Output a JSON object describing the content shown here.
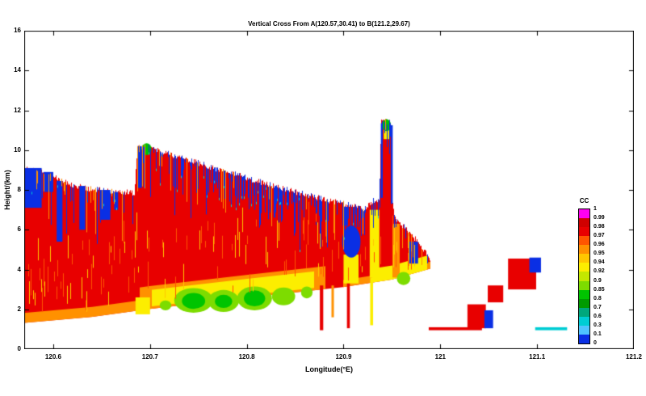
{
  "chart_data": {
    "type": "heatmap",
    "title": "Vertical Cross From A(120.57,30.41) to B(121.2,29.67)",
    "xlabel": "Longitude(°E)",
    "ylabel": "Height/(km)",
    "xlim": [
      120.57,
      121.2
    ],
    "ylim": [
      0,
      16
    ],
    "xticks": [
      120.6,
      120.7,
      120.8,
      120.9,
      121,
      121.1,
      121.2
    ],
    "xtick_labels": [
      "120.6",
      "120.7",
      "120.8",
      "120.9",
      "121",
      "121.1",
      "121.2"
    ],
    "yticks": [
      0,
      2,
      4,
      6,
      8,
      10,
      12,
      14,
      16
    ],
    "ytick_labels": [
      "0",
      "2",
      "4",
      "6",
      "8",
      "10",
      "12",
      "14",
      "16"
    ],
    "grid": false,
    "legend_position": "right-inside",
    "colorbar": {
      "title": "CC",
      "levels": [
        1,
        0.99,
        0.98,
        0.97,
        0.96,
        0.95,
        0.94,
        0.92,
        0.9,
        0.85,
        0.8,
        0.7,
        0.6,
        0.3,
        0.1,
        0
      ],
      "labels": [
        "1",
        "0.99",
        "0.98",
        "0.97",
        "0.96",
        "0.95",
        "0.94",
        "0.92",
        "0.9",
        "0.85",
        "0.8",
        "0.7",
        "0.6",
        "0.3",
        "0.1",
        "0"
      ],
      "colors": [
        "#ff00f0",
        "#d00000",
        "#e80000",
        "#ff5500",
        "#ff9100",
        "#ffc800",
        "#fcee00",
        "#c3e800",
        "#7ddc00",
        "#00c400",
        "#009b00",
        "#00a87c",
        "#00cdd4",
        "#4fc4ff",
        "#0a2fe4"
      ]
    },
    "cross_section": {
      "description": "Radar correlation-coefficient vertical cross section; main echo wedge from A toward B, mostly CC 0.97-0.98 (red), low-CC (blue) spikes along echo top, CC 0.8-0.9 (green) pockets near 2-3 km between 120.72-120.85, isolated cells east of 121.0",
      "base_cc": 0.975,
      "x_end": 120.99,
      "top_profile": [
        [
          120.57,
          9.05
        ],
        [
          120.595,
          8.85
        ],
        [
          120.615,
          8.35
        ],
        [
          120.635,
          8.05
        ],
        [
          120.66,
          7.95
        ],
        [
          120.684,
          7.85
        ],
        [
          120.687,
          10.15
        ],
        [
          120.7,
          10.25
        ],
        [
          120.704,
          10.05
        ],
        [
          120.75,
          9.35
        ],
        [
          120.8,
          8.6
        ],
        [
          120.85,
          7.9
        ],
        [
          120.9,
          7.3
        ],
        [
          120.923,
          7.05
        ],
        [
          120.93,
          7.45
        ],
        [
          120.937,
          7.5
        ],
        [
          120.939,
          11.45
        ],
        [
          120.949,
          11.4
        ],
        [
          120.951,
          7.2
        ],
        [
          120.954,
          6.55
        ],
        [
          120.96,
          6.25
        ],
        [
          120.975,
          5.5
        ],
        [
          120.985,
          4.9
        ],
        [
          120.99,
          4.4
        ]
      ],
      "bottom_profile": [
        [
          120.57,
          1.32
        ],
        [
          120.64,
          1.62
        ],
        [
          120.7,
          2.02
        ],
        [
          120.8,
          2.58
        ],
        [
          120.9,
          3.12
        ],
        [
          120.95,
          3.5
        ],
        [
          120.99,
          4.05
        ]
      ],
      "features": [
        {
          "kind": "band",
          "x0": 120.57,
          "x1": 120.69,
          "dz0": 0.0,
          "dz1": 0.5,
          "cc": 0.96
        },
        {
          "kind": "band",
          "x0": 120.69,
          "x1": 120.88,
          "dz0": 0.0,
          "dz1": 1.15,
          "cc": 0.955
        },
        {
          "kind": "band",
          "x0": 120.702,
          "x1": 120.868,
          "dz0": 0.12,
          "dz1": 0.95,
          "cc": 0.93
        },
        {
          "kind": "band",
          "x0": 120.9,
          "x1": 120.99,
          "dz0": 0.0,
          "dz1": 0.35,
          "cc": 0.955
        },
        {
          "kind": "band",
          "x0": 120.93,
          "x1": 120.985,
          "dz0": 0.0,
          "dz1": 0.7,
          "cc": 0.93
        },
        {
          "kind": "rect",
          "x0": 120.685,
          "x1": 120.7,
          "z0": 1.75,
          "z1": 2.6,
          "cc": 0.94
        },
        {
          "kind": "ellipse",
          "cx": 120.745,
          "cz": 2.45,
          "rx": 0.02,
          "rz": 0.62,
          "cc": 0.87
        },
        {
          "kind": "ellipse",
          "cx": 120.776,
          "cz": 2.42,
          "rx": 0.016,
          "rz": 0.55,
          "cc": 0.87
        },
        {
          "kind": "ellipse",
          "cx": 120.808,
          "cz": 2.55,
          "rx": 0.018,
          "rz": 0.6,
          "cc": 0.87
        },
        {
          "kind": "ellipse",
          "cx": 120.838,
          "cz": 2.65,
          "rx": 0.012,
          "rz": 0.45,
          "cc": 0.87
        },
        {
          "kind": "ellipse",
          "cx": 120.745,
          "cz": 2.42,
          "rx": 0.012,
          "rz": 0.4,
          "cc": 0.82
        },
        {
          "kind": "ellipse",
          "cx": 120.776,
          "cz": 2.4,
          "rx": 0.009,
          "rz": 0.33,
          "cc": 0.82
        },
        {
          "kind": "ellipse",
          "cx": 120.808,
          "cz": 2.55,
          "rx": 0.011,
          "rz": 0.4,
          "cc": 0.82
        },
        {
          "kind": "ellipse",
          "cx": 120.716,
          "cz": 2.2,
          "rx": 0.006,
          "rz": 0.25,
          "cc": 0.87
        },
        {
          "kind": "ellipse",
          "cx": 120.862,
          "cz": 2.85,
          "rx": 0.006,
          "rz": 0.3,
          "cc": 0.87
        },
        {
          "kind": "rect",
          "x0": 120.57,
          "x1": 120.588,
          "z0": 7.1,
          "z1": 9.1,
          "cc": 0.05
        },
        {
          "kind": "rect",
          "x0": 120.59,
          "x1": 120.6,
          "z0": 7.9,
          "z1": 8.9,
          "cc": 0.05
        },
        {
          "kind": "rect",
          "x0": 120.6035,
          "x1": 120.6095,
          "z0": 5.4,
          "z1": 8.45,
          "cc": 0.05
        },
        {
          "kind": "rect",
          "x0": 120.627,
          "x1": 120.633,
          "z0": 6.0,
          "z1": 8.2,
          "cc": 0.05
        },
        {
          "kind": "rect",
          "x0": 120.648,
          "x1": 120.659,
          "z0": 6.5,
          "z1": 8.0,
          "cc": 0.05
        },
        {
          "kind": "rect",
          "x0": 120.663,
          "x1": 120.667,
          "z0": 7.0,
          "z1": 7.9,
          "cc": 0.05
        },
        {
          "kind": "rect",
          "x0": 120.6875,
          "x1": 120.6915,
          "z0": 8.1,
          "z1": 10.2,
          "cc": 0.05
        },
        {
          "kind": "ellipse",
          "cx": 120.6965,
          "cz": 10.05,
          "rx": 0.005,
          "rz": 0.3,
          "cc": 0.85
        },
        {
          "kind": "rect",
          "x0": 120.9,
          "x1": 120.9155,
          "z0": 3.3,
          "z1": 4.75,
          "cc": 0.93
        },
        {
          "kind": "ellipse",
          "cx": 120.908,
          "cz": 5.4,
          "rx": 0.0095,
          "rz": 0.8,
          "cc": 0.05
        },
        {
          "kind": "rect",
          "x0": 120.899,
          "x1": 120.9045,
          "z0": 6.2,
          "z1": 7.15,
          "cc": 0.05
        },
        {
          "kind": "rect",
          "x0": 120.927,
          "x1": 120.937,
          "z0": 3.6,
          "z1": 7.0,
          "cc": 0.94
        },
        {
          "kind": "rect",
          "x0": 120.9505,
          "x1": 120.958,
          "z0": 3.6,
          "z1": 6.3,
          "cc": 0.955
        },
        {
          "kind": "rect",
          "x0": 120.9385,
          "x1": 120.9405,
          "z0": 7.6,
          "z1": 11.35,
          "cc": 0.05
        },
        {
          "kind": "rect",
          "x0": 120.9488,
          "x1": 120.9508,
          "z0": 7.3,
          "z1": 11.25,
          "cc": 0.05
        },
        {
          "kind": "rect",
          "x0": 120.9415,
          "x1": 120.9478,
          "z0": 10.55,
          "z1": 11.05,
          "cc": 0.93
        },
        {
          "kind": "ellipse",
          "cx": 120.9445,
          "cz": 11.25,
          "rx": 0.0045,
          "rz": 0.3,
          "cc": 0.85
        },
        {
          "kind": "ellipse",
          "cx": 120.962,
          "cz": 3.55,
          "rx": 0.007,
          "rz": 0.33,
          "cc": 0.87
        },
        {
          "kind": "rect",
          "x0": 120.9675,
          "x1": 120.977,
          "z0": 4.3,
          "z1": 5.4,
          "cc": 0.05
        },
        {
          "kind": "rect",
          "x0": 120.8755,
          "x1": 120.879,
          "z0": 0.95,
          "z1": 3.2,
          "cc": 0.975
        },
        {
          "kind": "rect",
          "x0": 120.8875,
          "x1": 120.89,
          "z0": 1.6,
          "z1": 3.2,
          "cc": 0.955
        },
        {
          "kind": "rect",
          "x0": 120.9035,
          "x1": 120.9065,
          "z0": 1.05,
          "z1": 3.3,
          "cc": 0.975
        },
        {
          "kind": "rect",
          "x0": 120.9275,
          "x1": 120.9305,
          "z0": 1.2,
          "z1": 3.6,
          "cc": 0.93
        },
        {
          "kind": "rect",
          "x0": 120.988,
          "x1": 121.043,
          "z0": 0.95,
          "z1": 1.1,
          "cc": 0.975
        },
        {
          "kind": "rect",
          "x0": 121.028,
          "x1": 121.047,
          "z0": 1.05,
          "z1": 2.25,
          "cc": 0.975
        },
        {
          "kind": "rect",
          "x0": 121.0455,
          "x1": 121.0545,
          "z0": 1.05,
          "z1": 1.95,
          "cc": 0.05
        },
        {
          "kind": "rect",
          "x0": 121.049,
          "x1": 121.065,
          "z0": 2.35,
          "z1": 3.2,
          "cc": 0.975
        },
        {
          "kind": "rect",
          "x0": 121.07,
          "x1": 121.099,
          "z0": 3.0,
          "z1": 4.55,
          "cc": 0.975
        },
        {
          "kind": "rect",
          "x0": 121.092,
          "x1": 121.104,
          "z0": 3.85,
          "z1": 4.6,
          "cc": 0.05
        },
        {
          "kind": "rect",
          "x0": 121.098,
          "x1": 121.131,
          "z0": 0.95,
          "z1": 1.1,
          "cc": 0.45
        }
      ],
      "noise": {
        "seed": 12,
        "jitter": 0.3,
        "top_blue_prob": 0.4,
        "top_blue_prob_left": 0.22,
        "top_orange_prob": 0.1,
        "interior_prob": 0.16,
        "interior_prob_left": 0.33
      }
    }
  }
}
